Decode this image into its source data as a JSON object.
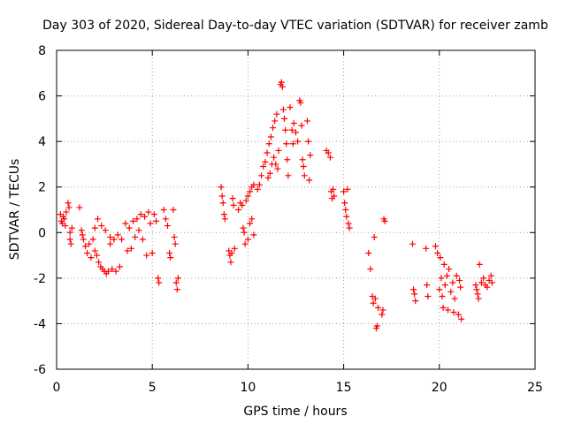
{
  "chart_data": {
    "type": "scatter",
    "title": "Day 303 of 2020, Sidereal Day-to-day VTEC variation (SDTVAR) for receiver zamb",
    "xlabel": "GPS time / hours",
    "ylabel": "SDTVAR / TECUs",
    "xlim": [
      0,
      25
    ],
    "ylim": [
      -6,
      8
    ],
    "xticks": [
      "0",
      "5",
      "10",
      "15",
      "20",
      "25"
    ],
    "yticks": [
      "-6",
      "-4",
      "-2",
      "0",
      "2",
      "4",
      "6",
      "8"
    ],
    "grid": true,
    "marker": "+",
    "color": "#ff0000",
    "series": [
      {
        "name": "SDTVAR",
        "points": [
          [
            0.2,
            0.8
          ],
          [
            0.25,
            0.5
          ],
          [
            0.3,
            0.4
          ],
          [
            0.35,
            0.7
          ],
          [
            0.4,
            0.6
          ],
          [
            0.45,
            0.3
          ],
          [
            0.5,
            0.9
          ],
          [
            0.6,
            1.3
          ],
          [
            0.65,
            1.1
          ],
          [
            0.7,
            -0.3
          ],
          [
            0.7,
            0.0
          ],
          [
            0.75,
            -0.5
          ],
          [
            0.8,
            0.2
          ],
          [
            1.2,
            1.1
          ],
          [
            1.3,
            0.1
          ],
          [
            1.35,
            -0.1
          ],
          [
            1.4,
            -0.3
          ],
          [
            1.5,
            -0.6
          ],
          [
            1.6,
            -0.9
          ],
          [
            1.7,
            -0.5
          ],
          [
            1.8,
            -1.1
          ],
          [
            1.9,
            -0.3
          ],
          [
            2.0,
            0.2
          ],
          [
            2.0,
            -0.8
          ],
          [
            2.1,
            -1.0
          ],
          [
            2.15,
            0.6
          ],
          [
            2.2,
            -1.3
          ],
          [
            2.3,
            -1.5
          ],
          [
            2.35,
            0.3
          ],
          [
            2.4,
            -1.6
          ],
          [
            2.5,
            -1.7
          ],
          [
            2.55,
            0.1
          ],
          [
            2.6,
            -1.8
          ],
          [
            2.7,
            -1.7
          ],
          [
            2.8,
            -0.2
          ],
          [
            2.8,
            -0.5
          ],
          [
            2.9,
            -1.6
          ],
          [
            3.0,
            -0.3
          ],
          [
            3.1,
            -1.7
          ],
          [
            3.2,
            -0.1
          ],
          [
            3.3,
            -1.5
          ],
          [
            3.4,
            -0.3
          ],
          [
            3.6,
            0.4
          ],
          [
            3.7,
            -0.8
          ],
          [
            3.8,
            0.2
          ],
          [
            3.9,
            -0.7
          ],
          [
            4.0,
            0.5
          ],
          [
            4.1,
            -0.2
          ],
          [
            4.2,
            0.6
          ],
          [
            4.3,
            0.1
          ],
          [
            4.4,
            0.8
          ],
          [
            4.5,
            -0.3
          ],
          [
            4.6,
            0.7
          ],
          [
            4.7,
            -1.0
          ],
          [
            4.8,
            0.9
          ],
          [
            4.9,
            0.4
          ],
          [
            5.0,
            -0.9
          ],
          [
            5.1,
            0.8
          ],
          [
            5.2,
            0.5
          ],
          [
            5.3,
            -2.0
          ],
          [
            5.35,
            -2.2
          ],
          [
            5.6,
            1.0
          ],
          [
            5.7,
            0.6
          ],
          [
            5.8,
            0.3
          ],
          [
            5.9,
            -0.9
          ],
          [
            5.95,
            -1.1
          ],
          [
            6.1,
            1.0
          ],
          [
            6.15,
            -0.2
          ],
          [
            6.2,
            -0.5
          ],
          [
            6.25,
            -2.2
          ],
          [
            6.3,
            -2.5
          ],
          [
            6.35,
            -2.0
          ],
          [
            8.6,
            2.0
          ],
          [
            8.65,
            1.6
          ],
          [
            8.7,
            1.3
          ],
          [
            8.75,
            0.8
          ],
          [
            8.8,
            0.6
          ],
          [
            9.0,
            -0.8
          ],
          [
            9.05,
            -1.0
          ],
          [
            9.1,
            -1.3
          ],
          [
            9.15,
            -0.9
          ],
          [
            9.2,
            1.5
          ],
          [
            9.25,
            1.2
          ],
          [
            9.3,
            -0.7
          ],
          [
            9.5,
            1.0
          ],
          [
            9.6,
            1.3
          ],
          [
            9.7,
            1.2
          ],
          [
            9.75,
            0.2
          ],
          [
            9.8,
            0.0
          ],
          [
            9.85,
            -0.5
          ],
          [
            9.9,
            1.4
          ],
          [
            10.0,
            1.6
          ],
          [
            10.0,
            -0.3
          ],
          [
            10.1,
            1.8
          ],
          [
            10.1,
            0.4
          ],
          [
            10.2,
            2.0
          ],
          [
            10.2,
            0.6
          ],
          [
            10.3,
            2.1
          ],
          [
            10.3,
            -0.1
          ],
          [
            10.5,
            1.9
          ],
          [
            10.6,
            2.1
          ],
          [
            10.7,
            2.5
          ],
          [
            10.8,
            2.9
          ],
          [
            10.9,
            3.1
          ],
          [
            11.0,
            3.5
          ],
          [
            11.05,
            2.4
          ],
          [
            11.1,
            3.9
          ],
          [
            11.15,
            2.6
          ],
          [
            11.2,
            4.2
          ],
          [
            11.25,
            3.0
          ],
          [
            11.3,
            4.6
          ],
          [
            11.35,
            3.3
          ],
          [
            11.4,
            4.9
          ],
          [
            11.45,
            3.0
          ],
          [
            11.5,
            5.2
          ],
          [
            11.55,
            2.8
          ],
          [
            11.6,
            3.6
          ],
          [
            11.7,
            6.5
          ],
          [
            11.75,
            6.6
          ],
          [
            11.8,
            6.4
          ],
          [
            11.85,
            5.4
          ],
          [
            11.9,
            5.0
          ],
          [
            11.95,
            4.5
          ],
          [
            12.0,
            3.9
          ],
          [
            12.05,
            3.2
          ],
          [
            12.1,
            2.5
          ],
          [
            12.2,
            5.5
          ],
          [
            12.3,
            4.5
          ],
          [
            12.35,
            3.9
          ],
          [
            12.4,
            4.8
          ],
          [
            12.5,
            4.4
          ],
          [
            12.6,
            4.0
          ],
          [
            12.7,
            5.8
          ],
          [
            12.75,
            5.7
          ],
          [
            12.8,
            4.7
          ],
          [
            12.85,
            3.2
          ],
          [
            12.9,
            2.9
          ],
          [
            12.95,
            2.5
          ],
          [
            13.1,
            4.9
          ],
          [
            13.15,
            4.0
          ],
          [
            13.2,
            2.3
          ],
          [
            13.25,
            3.4
          ],
          [
            14.1,
            3.6
          ],
          [
            14.2,
            3.5
          ],
          [
            14.3,
            3.3
          ],
          [
            14.35,
            1.8
          ],
          [
            14.4,
            1.5
          ],
          [
            14.45,
            1.9
          ],
          [
            14.5,
            1.6
          ],
          [
            15.0,
            1.8
          ],
          [
            15.05,
            1.3
          ],
          [
            15.1,
            1.0
          ],
          [
            15.15,
            0.7
          ],
          [
            15.2,
            1.9
          ],
          [
            15.25,
            0.4
          ],
          [
            15.3,
            0.2
          ],
          [
            16.3,
            -0.9
          ],
          [
            16.4,
            -1.6
          ],
          [
            16.5,
            -2.8
          ],
          [
            16.55,
            -3.1
          ],
          [
            16.6,
            -0.2
          ],
          [
            16.65,
            -2.9
          ],
          [
            16.7,
            -4.2
          ],
          [
            16.75,
            -4.1
          ],
          [
            16.8,
            -3.3
          ],
          [
            17.0,
            -3.6
          ],
          [
            17.05,
            -3.4
          ],
          [
            17.1,
            0.6
          ],
          [
            17.15,
            0.5
          ],
          [
            18.6,
            -0.5
          ],
          [
            18.65,
            -2.5
          ],
          [
            18.7,
            -2.7
          ],
          [
            18.75,
            -3.0
          ],
          [
            19.3,
            -0.7
          ],
          [
            19.35,
            -2.3
          ],
          [
            19.4,
            -2.8
          ],
          [
            19.8,
            -0.6
          ],
          [
            19.9,
            -0.9
          ],
          [
            20.0,
            -2.5
          ],
          [
            20.05,
            -1.1
          ],
          [
            20.1,
            -2.0
          ],
          [
            20.15,
            -2.8
          ],
          [
            20.2,
            -3.3
          ],
          [
            20.25,
            -1.4
          ],
          [
            20.3,
            -2.3
          ],
          [
            20.4,
            -1.9
          ],
          [
            20.45,
            -3.4
          ],
          [
            20.5,
            -1.6
          ],
          [
            20.6,
            -2.6
          ],
          [
            20.7,
            -2.2
          ],
          [
            20.75,
            -3.5
          ],
          [
            20.8,
            -2.9
          ],
          [
            20.9,
            -1.9
          ],
          [
            21.0,
            -3.6
          ],
          [
            21.05,
            -2.1
          ],
          [
            21.1,
            -2.4
          ],
          [
            21.15,
            -3.8
          ],
          [
            21.9,
            -2.3
          ],
          [
            21.95,
            -2.5
          ],
          [
            22.0,
            -2.7
          ],
          [
            22.05,
            -2.9
          ],
          [
            22.1,
            -1.4
          ],
          [
            22.2,
            -2.2
          ],
          [
            22.3,
            -2.0
          ],
          [
            22.4,
            -2.3
          ],
          [
            22.5,
            -2.4
          ],
          [
            22.6,
            -2.1
          ],
          [
            22.7,
            -1.9
          ],
          [
            22.75,
            -2.2
          ]
        ]
      }
    ]
  }
}
